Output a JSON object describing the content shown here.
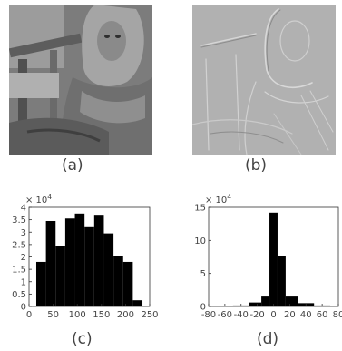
{
  "captions": {
    "a": "(a)",
    "b": "(b)",
    "c": "(c)",
    "d": "(d)"
  },
  "chart_data": [
    {
      "type": "bar",
      "panel": "(c)",
      "multiplier_label": "× 10",
      "multiplier_exp": "4",
      "bin_edges": [
        15,
        35,
        55,
        75,
        95,
        115,
        135,
        155,
        175,
        195,
        215,
        235
      ],
      "values": [
        1.8,
        3.45,
        2.45,
        3.55,
        3.75,
        3.2,
        3.7,
        2.95,
        2.05,
        1.8,
        0.25
      ],
      "xlim": [
        0,
        250
      ],
      "ylim": [
        0,
        4
      ],
      "xticks": [
        0,
        50,
        100,
        150,
        200,
        250
      ],
      "yticks": [
        0,
        0.5,
        1,
        1.5,
        2,
        2.5,
        3,
        3.5,
        4
      ],
      "xticklabels": [
        "0",
        "50",
        "100",
        "150",
        "200",
        "250"
      ],
      "yticklabels": [
        "0",
        "0.5",
        "1",
        "1.5",
        "2",
        "2.5",
        "3",
        "3.5",
        "4"
      ],
      "title": "",
      "xlabel": "",
      "ylabel": ""
    },
    {
      "type": "bar",
      "panel": "(d)",
      "multiplier_label": "× 10",
      "multiplier_exp": "4",
      "bin_edges": [
        -70,
        -50,
        -30,
        -15,
        -5,
        5,
        15,
        30,
        50,
        70
      ],
      "values": [
        0.05,
        0.15,
        0.6,
        1.5,
        14.2,
        7.6,
        1.5,
        0.5,
        0.15
      ],
      "xlim": [
        -80,
        80
      ],
      "ylim": [
        0,
        15
      ],
      "xticks": [
        -80,
        -60,
        -40,
        -20,
        0,
        20,
        40,
        60,
        80
      ],
      "yticks": [
        0,
        5,
        10,
        15
      ],
      "xticklabels": [
        "-80",
        "-60",
        "-40",
        "-20",
        "0",
        "20",
        "40",
        "60",
        "80"
      ],
      "yticklabels": [
        "0",
        "5",
        "10",
        "15"
      ],
      "title": "",
      "xlabel": "",
      "ylabel": ""
    }
  ]
}
